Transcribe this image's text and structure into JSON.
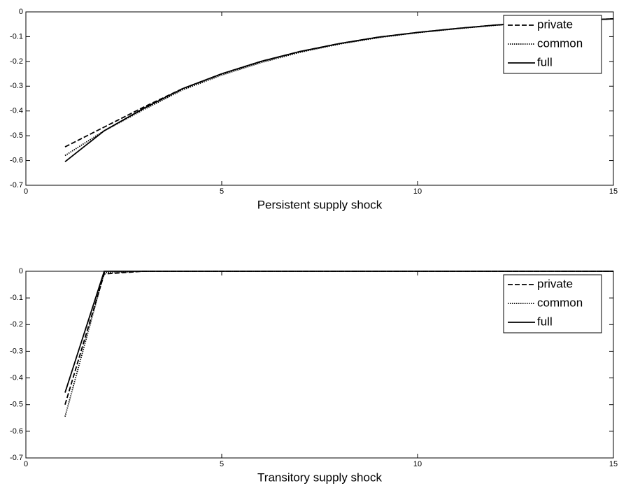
{
  "chart_data": [
    {
      "type": "line",
      "xlabel": "Persistent supply shock",
      "x": [
        1,
        2,
        3,
        4,
        5,
        6,
        7,
        8,
        9,
        10,
        11,
        12,
        13,
        14,
        15
      ],
      "series": [
        {
          "name": "private",
          "color": "#000000",
          "dash": "dashed",
          "values": [
            -0.545,
            -0.465,
            -0.385,
            -0.31,
            -0.25,
            -0.2,
            -0.16,
            -0.128,
            -0.102,
            -0.083,
            -0.067,
            -0.053,
            -0.043,
            -0.035,
            -0.028
          ]
        },
        {
          "name": "common",
          "color": "#000000",
          "dash": "dotted",
          "values": [
            -0.58,
            -0.48,
            -0.395,
            -0.315,
            -0.255,
            -0.205,
            -0.163,
            -0.13,
            -0.104,
            -0.084,
            -0.068,
            -0.054,
            -0.043,
            -0.035,
            -0.028
          ]
        },
        {
          "name": "full",
          "color": "#000000",
          "dash": "solid",
          "values": [
            -0.605,
            -0.48,
            -0.39,
            -0.31,
            -0.25,
            -0.2,
            -0.16,
            -0.128,
            -0.102,
            -0.083,
            -0.067,
            -0.053,
            -0.043,
            -0.035,
            -0.028
          ]
        }
      ],
      "xlim": [
        0,
        15
      ],
      "xticks": [
        0,
        5,
        10,
        15
      ],
      "ylim": [
        -0.7,
        0
      ],
      "yticks": [
        0,
        -0.1,
        -0.2,
        -0.3,
        -0.4,
        -0.5,
        -0.6,
        -0.7
      ],
      "legend": "northeast"
    },
    {
      "type": "line",
      "xlabel": "Transitory supply shock",
      "x": [
        1,
        2,
        3,
        4,
        5,
        6,
        7,
        8,
        9,
        10,
        11,
        12,
        13,
        14,
        15
      ],
      "series": [
        {
          "name": "private",
          "color": "#000000",
          "dash": "dashed",
          "values": [
            -0.5,
            -0.01,
            0,
            0,
            0,
            0,
            0,
            0,
            0,
            0,
            0,
            0,
            0,
            0,
            0
          ]
        },
        {
          "name": "common",
          "color": "#000000",
          "dash": "dotted",
          "values": [
            -0.545,
            -0.005,
            0,
            0,
            0,
            0,
            0,
            0,
            0,
            0,
            0,
            0,
            0,
            0,
            0
          ]
        },
        {
          "name": "full",
          "color": "#000000",
          "dash": "solid",
          "values": [
            -0.455,
            0,
            0,
            0,
            0,
            0,
            0,
            0,
            0,
            0,
            0,
            0,
            0,
            0,
            0
          ]
        }
      ],
      "xlim": [
        0,
        15
      ],
      "xticks": [
        0,
        5,
        10,
        15
      ],
      "ylim": [
        -0.7,
        0
      ],
      "yticks": [
        0,
        -0.1,
        -0.2,
        -0.3,
        -0.4,
        -0.5,
        -0.6,
        -0.7
      ],
      "legend": "northeast"
    }
  ]
}
